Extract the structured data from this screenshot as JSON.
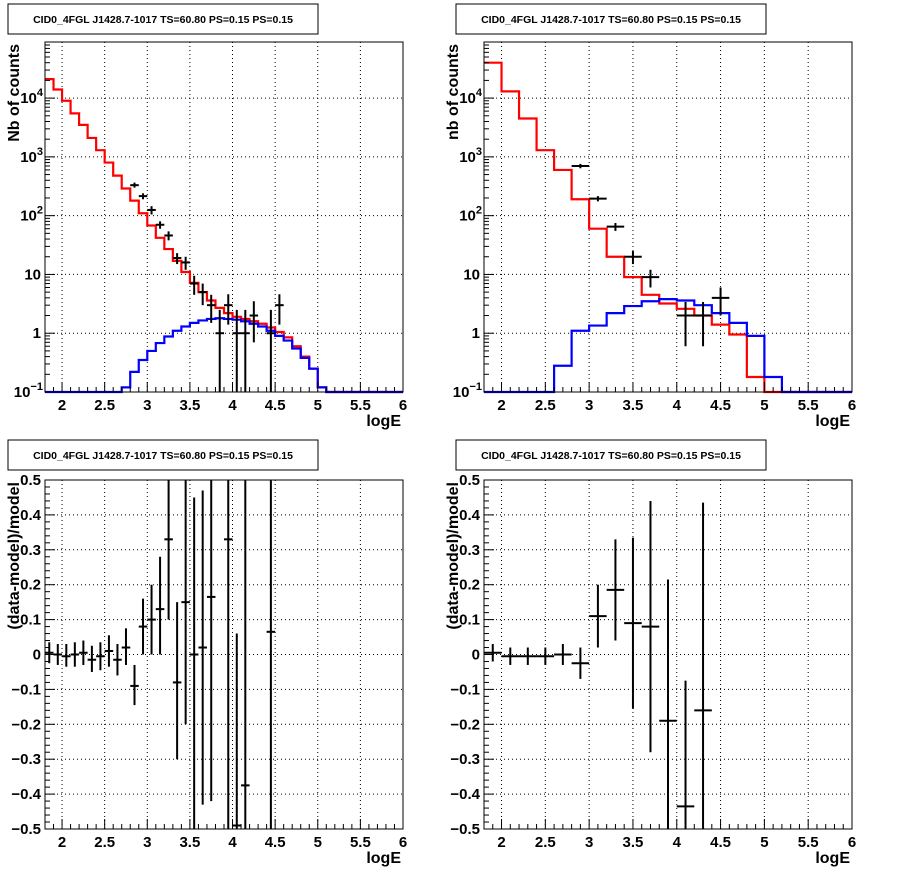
{
  "chart_data": [
    {
      "id": "tl",
      "type": "line",
      "title": "CID0_4FGL J1428.7-1017 TS=60.80 PS=0.15 PS=0.15",
      "xlabel": "logE",
      "ylabel": "Nb of counts",
      "xlim": [
        1.8,
        6.0
      ],
      "ylim": [
        0.1,
        90000
      ],
      "ylog": true,
      "grid": true,
      "xticks": [
        {
          "v": 2,
          "l": "2"
        },
        {
          "v": 2.5,
          "l": "2.5"
        },
        {
          "v": 3,
          "l": "3"
        },
        {
          "v": 3.5,
          "l": "3.5"
        },
        {
          "v": 4,
          "l": "4"
        },
        {
          "v": 4.5,
          "l": "4.5"
        },
        {
          "v": 5,
          "l": "5"
        },
        {
          "v": 5.5,
          "l": "5.5"
        },
        {
          "v": 6,
          "l": "6"
        }
      ],
      "yticks": [
        {
          "v": 0.1,
          "l": "10",
          "sup": "−1"
        },
        {
          "v": 1,
          "l": "1"
        },
        {
          "v": 10,
          "l": "10"
        },
        {
          "v": 100,
          "l": "10",
          "sup": "2"
        },
        {
          "v": 1000,
          "l": "10",
          "sup": "3"
        },
        {
          "v": 10000,
          "l": "10",
          "sup": "4"
        }
      ],
      "bin_edges": [
        1.8,
        1.9,
        2.0,
        2.1,
        2.2,
        2.3,
        2.4,
        2.5,
        2.6,
        2.7,
        2.8,
        2.9,
        3.0,
        3.1,
        3.2,
        3.3,
        3.4,
        3.5,
        3.6,
        3.7,
        3.8,
        3.9,
        4.0,
        4.1,
        4.2,
        4.3,
        4.4,
        4.5,
        4.6,
        4.7,
        4.8,
        4.9,
        5.0,
        5.1,
        5.2,
        5.3,
        5.4,
        5.5,
        5.6,
        5.7,
        5.8,
        5.9,
        6.0
      ],
      "series": [
        {
          "name": "",
          "color": "#ff0000",
          "style": "step",
          "values": [
            21000,
            14000,
            9000,
            5500,
            3500,
            2100,
            1300,
            800,
            480,
            290,
            180,
            110,
            68,
            42,
            27,
            17,
            11,
            7.2,
            5.0,
            3.6,
            2.7,
            2.2,
            1.9,
            1.75,
            1.6,
            1.45,
            1.25,
            1.05,
            0.85,
            0.6,
            0.4,
            0.25,
            0.12,
            0.1,
            0.1,
            0.1,
            0.1,
            0.1,
            0.1,
            0.1,
            0.1,
            0.1
          ]
        },
        {
          "name": "",
          "color": "#0000ff",
          "style": "step",
          "values": [
            0.1,
            0.1,
            0.1,
            0.1,
            0.1,
            0.1,
            0.1,
            0.1,
            0.1,
            0.12,
            0.22,
            0.35,
            0.5,
            0.68,
            0.88,
            1.1,
            1.3,
            1.5,
            1.65,
            1.75,
            1.8,
            1.75,
            1.7,
            1.6,
            1.45,
            1.3,
            1.1,
            0.9,
            0.75,
            0.55,
            0.38,
            0.25,
            0.12,
            0.1,
            0.1,
            0.1,
            0.1,
            0.1,
            0.1,
            0.1,
            0.1,
            0.1
          ]
        }
      ],
      "points": [
        {
          "x": 2.85,
          "y": 330,
          "dx": 0.05,
          "ylo": 300,
          "yhi": 365
        },
        {
          "x": 2.95,
          "y": 215,
          "dx": 0.05,
          "ylo": 190,
          "yhi": 240
        },
        {
          "x": 3.05,
          "y": 125,
          "dx": 0.05,
          "ylo": 105,
          "yhi": 145
        },
        {
          "x": 3.15,
          "y": 70,
          "dx": 0.05,
          "ylo": 60,
          "yhi": 80
        },
        {
          "x": 3.25,
          "y": 46,
          "dx": 0.05,
          "ylo": 38,
          "yhi": 54
        },
        {
          "x": 3.35,
          "y": 19,
          "dx": 0.05,
          "ylo": 15,
          "yhi": 23
        },
        {
          "x": 3.45,
          "y": 16,
          "dx": 0.05,
          "ylo": 12,
          "yhi": 20
        },
        {
          "x": 3.55,
          "y": 7,
          "dx": 0.05,
          "ylo": 4.5,
          "yhi": 9.5
        },
        {
          "x": 3.65,
          "y": 5,
          "dx": 0.05,
          "ylo": 3,
          "yhi": 7
        },
        {
          "x": 3.75,
          "y": 3,
          "dx": 0.05,
          "ylo": 1.5,
          "yhi": 4.5
        },
        {
          "x": 3.85,
          "y": 1,
          "dx": 0.05,
          "ylo": 0.1,
          "yhi": 2.5
        },
        {
          "x": 3.95,
          "y": 3,
          "dx": 0.05,
          "ylo": 1.4,
          "yhi": 4.6
        },
        {
          "x": 4.05,
          "y": 1,
          "dx": 0.05,
          "ylo": 0.1,
          "yhi": 2.5
        },
        {
          "x": 4.15,
          "y": 1,
          "dx": 0.05,
          "ylo": 0.1,
          "yhi": 2.5
        },
        {
          "x": 4.25,
          "y": 2,
          "dx": 0.05,
          "ylo": 0.7,
          "yhi": 3.5
        },
        {
          "x": 4.45,
          "y": 1,
          "dx": 0.05,
          "ylo": 0.1,
          "yhi": 2.5
        },
        {
          "x": 4.55,
          "y": 3,
          "dx": 0.05,
          "ylo": 1.4,
          "yhi": 4.6
        }
      ]
    },
    {
      "id": "tr",
      "type": "line",
      "title": "CID0_4FGL J1428.7-1017 TS=60.80 PS=0.15 PS=0.15",
      "xlabel": "logE",
      "ylabel": "nb of counts",
      "xlim": [
        1.8,
        6.0
      ],
      "ylim": [
        0.1,
        90000
      ],
      "ylog": true,
      "grid": true,
      "xticks": [
        {
          "v": 2,
          "l": "2"
        },
        {
          "v": 2.5,
          "l": "2.5"
        },
        {
          "v": 3,
          "l": "3"
        },
        {
          "v": 3.5,
          "l": "3.5"
        },
        {
          "v": 4,
          "l": "4"
        },
        {
          "v": 4.5,
          "l": "4.5"
        },
        {
          "v": 5,
          "l": "5"
        },
        {
          "v": 5.5,
          "l": "5.5"
        },
        {
          "v": 6,
          "l": "6"
        }
      ],
      "yticks": [
        {
          "v": 0.1,
          "l": "10",
          "sup": "−1"
        },
        {
          "v": 1,
          "l": "1"
        },
        {
          "v": 10,
          "l": "10"
        },
        {
          "v": 100,
          "l": "10",
          "sup": "2"
        },
        {
          "v": 1000,
          "l": "10",
          "sup": "3"
        },
        {
          "v": 10000,
          "l": "10",
          "sup": "4"
        }
      ],
      "bin_edges": [
        1.8,
        2.0,
        2.2,
        2.4,
        2.6,
        2.8,
        3.0,
        3.2,
        3.4,
        3.6,
        3.8,
        4.0,
        4.2,
        4.4,
        4.6,
        4.8,
        5.0,
        5.2,
        5.4,
        5.6,
        5.8,
        6.0
      ],
      "series": [
        {
          "name": "",
          "color": "#ff0000",
          "style": "step",
          "values": [
            40000,
            13000,
            4500,
            1300,
            600,
            190,
            60,
            20,
            9,
            4.5,
            3.2,
            2.6,
            2.0,
            1.4,
            0.95,
            0.18,
            0.1,
            0.1,
            0.1,
            0.1,
            0.1
          ]
        },
        {
          "name": "",
          "color": "#0000ff",
          "style": "step",
          "values": [
            0.1,
            0.1,
            0.1,
            0.1,
            0.28,
            1.1,
            1.35,
            2.2,
            2.9,
            3.5,
            3.8,
            3.6,
            3.0,
            2.2,
            1.5,
            0.9,
            0.18,
            0.1,
            0.1,
            0.1,
            0.1
          ]
        }
      ],
      "points": [
        {
          "x": 2.9,
          "y": 700,
          "dx": 0.1,
          "ylo": 640,
          "yhi": 760
        },
        {
          "x": 3.1,
          "y": 195,
          "dx": 0.1,
          "ylo": 175,
          "yhi": 215
        },
        {
          "x": 3.3,
          "y": 65,
          "dx": 0.1,
          "ylo": 55,
          "yhi": 75
        },
        {
          "x": 3.5,
          "y": 20,
          "dx": 0.1,
          "ylo": 15,
          "yhi": 25
        },
        {
          "x": 3.7,
          "y": 9,
          "dx": 0.1,
          "ylo": 6,
          "yhi": 12
        },
        {
          "x": 4.1,
          "y": 2,
          "dx": 0.1,
          "ylo": 0.6,
          "yhi": 3.4
        },
        {
          "x": 4.3,
          "y": 2,
          "dx": 0.1,
          "ylo": 0.6,
          "yhi": 3.4
        },
        {
          "x": 4.5,
          "y": 4,
          "dx": 0.1,
          "ylo": 2,
          "yhi": 6
        }
      ]
    },
    {
      "id": "bl",
      "type": "scatter",
      "title": "CID0_4FGL J1428.7-1017 TS=60.80 PS=0.15 PS=0.15",
      "xlabel": "logE",
      "ylabel": "(data-model)/model",
      "xlim": [
        1.8,
        6.0
      ],
      "ylim": [
        -0.5,
        0.5
      ],
      "ylog": false,
      "grid": true,
      "xticks": [
        {
          "v": 2,
          "l": "2"
        },
        {
          "v": 2.5,
          "l": "2.5"
        },
        {
          "v": 3,
          "l": "3"
        },
        {
          "v": 3.5,
          "l": "3.5"
        },
        {
          "v": 4,
          "l": "4"
        },
        {
          "v": 4.5,
          "l": "4.5"
        },
        {
          "v": 5,
          "l": "5"
        },
        {
          "v": 5.5,
          "l": "5.5"
        },
        {
          "v": 6,
          "l": "6"
        }
      ],
      "yticks": [
        {
          "v": -0.5,
          "l": "−0.5"
        },
        {
          "v": -0.4,
          "l": "−0.4"
        },
        {
          "v": -0.3,
          "l": "−0.3"
        },
        {
          "v": -0.2,
          "l": "−0.2"
        },
        {
          "v": -0.1,
          "l": "−0.1"
        },
        {
          "v": 0,
          "l": "0"
        },
        {
          "v": 0.1,
          "l": "0.1"
        },
        {
          "v": 0.2,
          "l": "0.2"
        },
        {
          "v": 0.3,
          "l": "0.3"
        },
        {
          "v": 0.4,
          "l": "0.4"
        },
        {
          "v": 0.5,
          "l": "0.5"
        }
      ],
      "series": [],
      "points": [
        {
          "x": 1.85,
          "y": 0.005,
          "dx": 0.05,
          "ylo": -0.025,
          "yhi": 0.035
        },
        {
          "x": 1.95,
          "y": 0.0,
          "dx": 0.05,
          "ylo": -0.03,
          "yhi": 0.03
        },
        {
          "x": 2.05,
          "y": -0.005,
          "dx": 0.05,
          "ylo": -0.035,
          "yhi": 0.03
        },
        {
          "x": 2.15,
          "y": 0.0,
          "dx": 0.05,
          "ylo": -0.035,
          "yhi": 0.035
        },
        {
          "x": 2.25,
          "y": 0.005,
          "dx": 0.05,
          "ylo": -0.03,
          "yhi": 0.04
        },
        {
          "x": 2.35,
          "y": -0.015,
          "dx": 0.05,
          "ylo": -0.05,
          "yhi": 0.025
        },
        {
          "x": 2.45,
          "y": -0.005,
          "dx": 0.05,
          "ylo": -0.045,
          "yhi": 0.035
        },
        {
          "x": 2.55,
          "y": 0.01,
          "dx": 0.05,
          "ylo": -0.035,
          "yhi": 0.055
        },
        {
          "x": 2.65,
          "y": -0.015,
          "dx": 0.05,
          "ylo": -0.06,
          "yhi": 0.03
        },
        {
          "x": 2.75,
          "y": 0.02,
          "dx": 0.05,
          "ylo": -0.03,
          "yhi": 0.075
        },
        {
          "x": 2.85,
          "y": -0.09,
          "dx": 0.05,
          "ylo": -0.145,
          "yhi": -0.03
        },
        {
          "x": 2.95,
          "y": 0.08,
          "dx": 0.05,
          "ylo": 0.0,
          "yhi": 0.16
        },
        {
          "x": 3.05,
          "y": 0.1,
          "dx": 0.05,
          "ylo": 0.0,
          "yhi": 0.2
        },
        {
          "x": 3.15,
          "y": 0.13,
          "dx": 0.05,
          "ylo": 0.0,
          "yhi": 0.28
        },
        {
          "x": 3.25,
          "y": 0.33,
          "dx": 0.05,
          "ylo": 0.1,
          "yhi": 0.5
        },
        {
          "x": 3.35,
          "y": -0.08,
          "dx": 0.05,
          "ylo": -0.3,
          "yhi": 0.15
        },
        {
          "x": 3.45,
          "y": 0.15,
          "dx": 0.05,
          "ylo": -0.2,
          "yhi": 0.5
        },
        {
          "x": 3.55,
          "y": 0.0,
          "dx": 0.05,
          "ylo": -0.5,
          "yhi": 0.45
        },
        {
          "x": 3.65,
          "y": 0.02,
          "dx": 0.05,
          "ylo": -0.43,
          "yhi": 0.47
        },
        {
          "x": 3.75,
          "y": 0.165,
          "dx": 0.05,
          "ylo": -0.42,
          "yhi": 0.5
        },
        {
          "x": 3.95,
          "y": 0.33,
          "dx": 0.05,
          "ylo": -0.5,
          "yhi": 0.5
        },
        {
          "x": 4.05,
          "y": -0.49,
          "dx": 0.05,
          "ylo": -0.5,
          "yhi": 0.06
        },
        {
          "x": 4.15,
          "y": -0.375,
          "dx": 0.05,
          "ylo": -0.5,
          "yhi": 0.5
        },
        {
          "x": 4.45,
          "y": 0.065,
          "dx": 0.05,
          "ylo": -0.5,
          "yhi": 0.5
        }
      ]
    },
    {
      "id": "br",
      "type": "scatter",
      "title": "CID0_4FGL J1428.7-1017 TS=60.80 PS=0.15 PS=0.15",
      "xlabel": "logE",
      "ylabel": "(data-model)/model",
      "xlim": [
        1.8,
        6.0
      ],
      "ylim": [
        -0.5,
        0.5
      ],
      "ylog": false,
      "grid": true,
      "xticks": [
        {
          "v": 2,
          "l": "2"
        },
        {
          "v": 2.5,
          "l": "2.5"
        },
        {
          "v": 3,
          "l": "3"
        },
        {
          "v": 3.5,
          "l": "3.5"
        },
        {
          "v": 4,
          "l": "4"
        },
        {
          "v": 4.5,
          "l": "4.5"
        },
        {
          "v": 5,
          "l": "5"
        },
        {
          "v": 5.5,
          "l": "5.5"
        },
        {
          "v": 6,
          "l": "6"
        }
      ],
      "yticks": [
        {
          "v": -0.5,
          "l": "−0.5"
        },
        {
          "v": -0.4,
          "l": "−0.4"
        },
        {
          "v": -0.3,
          "l": "−0.3"
        },
        {
          "v": -0.2,
          "l": "−0.2"
        },
        {
          "v": -0.1,
          "l": "−0.1"
        },
        {
          "v": 0,
          "l": "0"
        },
        {
          "v": 0.1,
          "l": "0.1"
        },
        {
          "v": 0.2,
          "l": "0.2"
        },
        {
          "v": 0.3,
          "l": "0.3"
        },
        {
          "v": 0.4,
          "l": "0.4"
        },
        {
          "v": 0.5,
          "l": "0.5"
        }
      ],
      "series": [],
      "points": [
        {
          "x": 1.9,
          "y": 0.005,
          "dx": 0.1,
          "ylo": -0.02,
          "yhi": 0.03
        },
        {
          "x": 2.1,
          "y": -0.005,
          "dx": 0.1,
          "ylo": -0.03,
          "yhi": 0.02
        },
        {
          "x": 2.3,
          "y": -0.005,
          "dx": 0.1,
          "ylo": -0.03,
          "yhi": 0.02
        },
        {
          "x": 2.5,
          "y": -0.005,
          "dx": 0.1,
          "ylo": -0.03,
          "yhi": 0.02
        },
        {
          "x": 2.7,
          "y": 0.0,
          "dx": 0.1,
          "ylo": -0.03,
          "yhi": 0.03
        },
        {
          "x": 2.9,
          "y": -0.025,
          "dx": 0.1,
          "ylo": -0.07,
          "yhi": 0.02
        },
        {
          "x": 3.1,
          "y": 0.11,
          "dx": 0.1,
          "ylo": 0.02,
          "yhi": 0.2
        },
        {
          "x": 3.3,
          "y": 0.185,
          "dx": 0.1,
          "ylo": 0.04,
          "yhi": 0.33
        },
        {
          "x": 3.5,
          "y": 0.09,
          "dx": 0.1,
          "ylo": -0.155,
          "yhi": 0.335
        },
        {
          "x": 3.7,
          "y": 0.08,
          "dx": 0.1,
          "ylo": -0.28,
          "yhi": 0.44
        },
        {
          "x": 3.9,
          "y": -0.19,
          "dx": 0.1,
          "ylo": -0.5,
          "yhi": 0.215
        },
        {
          "x": 4.1,
          "y": -0.435,
          "dx": 0.1,
          "ylo": -0.5,
          "yhi": -0.075
        },
        {
          "x": 4.3,
          "y": -0.16,
          "dx": 0.1,
          "ylo": -0.5,
          "yhi": 0.435
        }
      ]
    }
  ]
}
